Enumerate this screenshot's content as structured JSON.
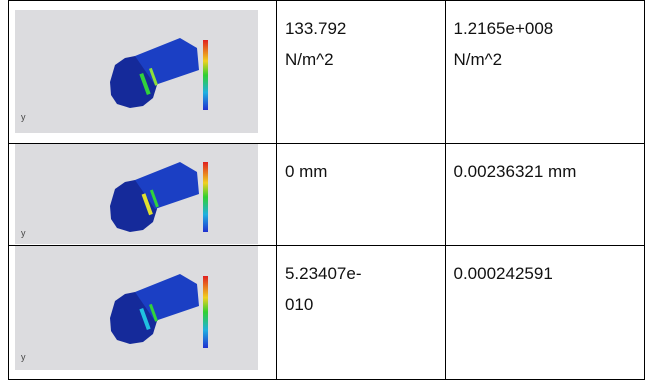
{
  "table": {
    "rows": [
      [
        [
          "133.792",
          "N/m^2"
        ],
        [
          "1.2165e+008",
          "N/m^2"
        ]
      ],
      [
        [
          "0 mm"
        ],
        [
          "0.00236321 mm"
        ]
      ],
      [
        [
          "5.23407e-",
          "010"
        ],
        [
          "0.000242591"
        ]
      ]
    ]
  }
}
